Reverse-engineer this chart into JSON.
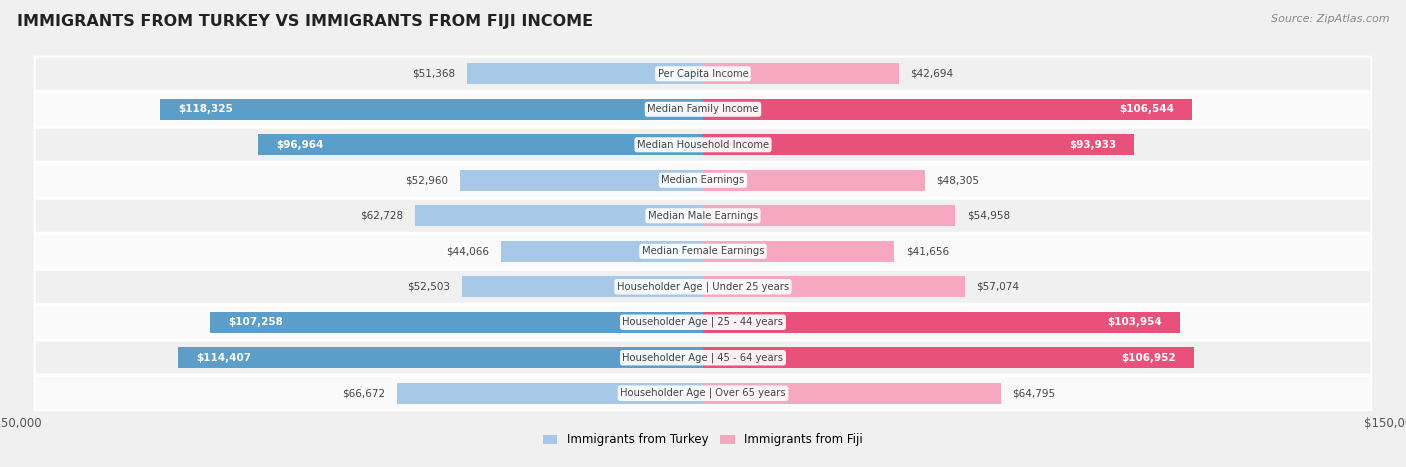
{
  "title": "IMMIGRANTS FROM TURKEY VS IMMIGRANTS FROM FIJI INCOME",
  "source": "Source: ZipAtlas.com",
  "categories": [
    "Per Capita Income",
    "Median Family Income",
    "Median Household Income",
    "Median Earnings",
    "Median Male Earnings",
    "Median Female Earnings",
    "Householder Age | Under 25 years",
    "Householder Age | 25 - 44 years",
    "Householder Age | 45 - 64 years",
    "Householder Age | Over 65 years"
  ],
  "turkey_values": [
    51368,
    118325,
    96964,
    52960,
    62728,
    44066,
    52503,
    107258,
    114407,
    66672
  ],
  "fiji_values": [
    42694,
    106544,
    93933,
    48305,
    54958,
    41656,
    57074,
    103954,
    106952,
    64795
  ],
  "turkey_light_color": "#a8c8e8",
  "turkey_dark_color": "#5b9ec9",
  "fiji_light_color": "#f5a8c0",
  "fiji_dark_color": "#e8527a",
  "max_value": 150000,
  "legend_turkey": "Immigrants from Turkey",
  "legend_fiji": "Immigrants from Fiji",
  "row_even_color": "#f0f0f0",
  "row_odd_color": "#fafafa",
  "bg_color": "#f0f0f0",
  "threshold": 80000
}
